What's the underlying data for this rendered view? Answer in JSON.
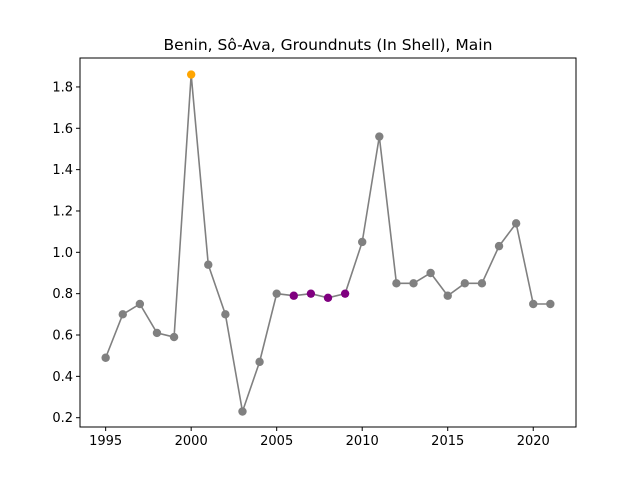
{
  "chart_data": {
    "type": "line",
    "title": "Benin, Sô-Ava, Groundnuts (In Shell), Main",
    "xlabel": "",
    "ylabel": "",
    "xlim": [
      1993.5,
      2022.5
    ],
    "ylim": [
      0.155,
      1.94
    ],
    "x_ticks": [
      1995,
      2000,
      2005,
      2010,
      2015,
      2020
    ],
    "x_tick_labels": [
      "1995",
      "2000",
      "2005",
      "2010",
      "2015",
      "2020"
    ],
    "y_ticks": [
      0.2,
      0.4,
      0.6,
      0.8,
      1.0,
      1.2,
      1.4,
      1.6,
      1.8
    ],
    "y_tick_labels": [
      "0.2",
      "0.4",
      "0.6",
      "0.8",
      "1.0",
      "1.2",
      "1.4",
      "1.6",
      "1.8"
    ],
    "grid": false,
    "line_color": "#808080",
    "series": [
      {
        "x": [
          1995,
          1996,
          1997,
          1998,
          1999,
          2000,
          2001,
          2002,
          2003,
          2004,
          2005,
          2006,
          2007,
          2008,
          2009,
          2010,
          2011,
          2012,
          2013,
          2014,
          2015,
          2016,
          2017,
          2018,
          2019,
          2020,
          2021
        ],
        "values": [
          0.49,
          0.7,
          0.75,
          0.61,
          0.59,
          1.86,
          0.94,
          0.7,
          0.23,
          0.47,
          0.8,
          0.79,
          0.8,
          0.78,
          0.8,
          1.05,
          1.56,
          0.85,
          0.85,
          0.9,
          0.79,
          0.85,
          0.85,
          1.03,
          1.14,
          0.75,
          0.75
        ],
        "point_colors": [
          "#808080",
          "#808080",
          "#808080",
          "#808080",
          "#808080",
          "#ffa500",
          "#808080",
          "#808080",
          "#808080",
          "#808080",
          "#808080",
          "#800080",
          "#800080",
          "#800080",
          "#800080",
          "#808080",
          "#808080",
          "#808080",
          "#808080",
          "#808080",
          "#808080",
          "#808080",
          "#808080",
          "#808080",
          "#808080",
          "#808080",
          "#808080"
        ]
      }
    ]
  }
}
